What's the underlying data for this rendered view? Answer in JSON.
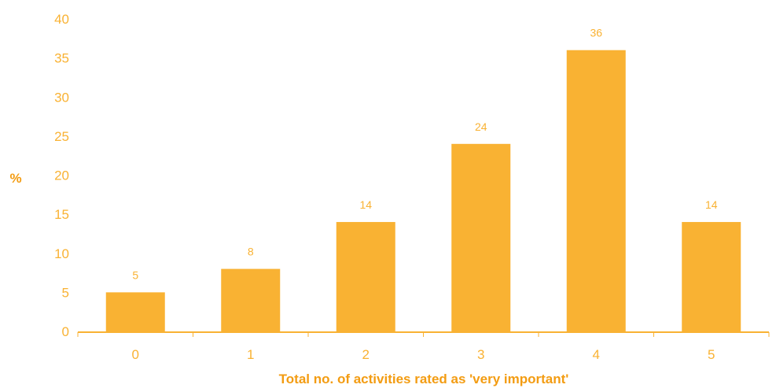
{
  "chart_data": {
    "type": "bar",
    "title": "",
    "xlabel": "Total no. of activities rated as 'very important'",
    "ylabel": "%",
    "categories": [
      "0",
      "1",
      "2",
      "3",
      "4",
      "5"
    ],
    "values": [
      5,
      8,
      14,
      24,
      36,
      14
    ],
    "data_labels": [
      "5",
      "8",
      "14",
      "24",
      "36",
      "14"
    ],
    "ylim": [
      0,
      40
    ],
    "yticks": [
      0,
      5,
      10,
      15,
      20,
      25,
      30,
      35,
      40
    ],
    "grid": false,
    "legend": "none",
    "colors": {
      "bar": "#F9B233",
      "axis": "#F9B233",
      "text": "#F9B233",
      "axis_title": "#F39C12"
    }
  }
}
